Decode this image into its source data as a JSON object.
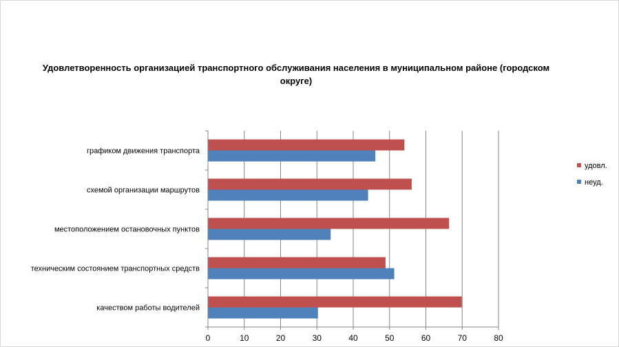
{
  "chart_data": {
    "type": "bar",
    "orientation": "horizontal",
    "title": "Удовлетворенность организацией транспортного обслуживания населения в муниципальном районе (городском округе)",
    "categories": [
      "графиком движения  транспорта",
      "схемой организации маршрутов",
      "местоположением  остановочных пунктов",
      "техническим  состоянием транспортных средств",
      "качеством  работы водителей"
    ],
    "series": [
      {
        "name": "удовл.",
        "color": "#c0504d",
        "values": [
          54,
          56,
          66.3,
          48.8,
          69.8
        ]
      },
      {
        "name": "неуд.",
        "color": "#4f81bd",
        "values": [
          46,
          44,
          33.7,
          51.2,
          30.2
        ]
      }
    ],
    "xlim": [
      0,
      80
    ],
    "xticks": [
      "0",
      "10",
      "20",
      "30",
      "40",
      "50",
      "60",
      "70",
      "80"
    ],
    "grid": true,
    "legend": "right"
  }
}
